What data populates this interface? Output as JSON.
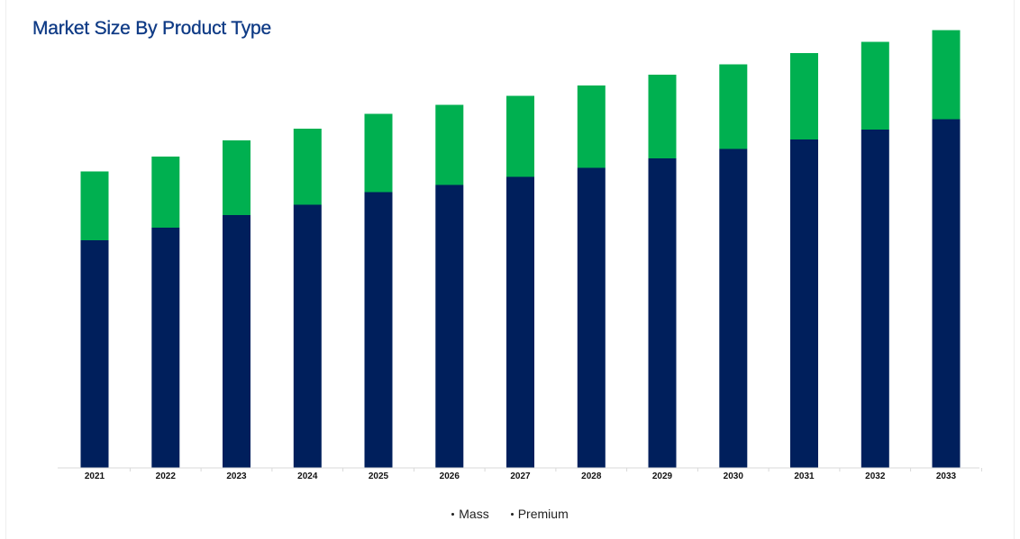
{
  "chart_data": {
    "type": "bar",
    "stacked": true,
    "title": "Market Size By Product Type",
    "xlabel": "",
    "ylabel": "",
    "categories": [
      "2021",
      "2022",
      "2023",
      "2024",
      "2025",
      "2026",
      "2027",
      "2028",
      "2029",
      "2030",
      "2031",
      "2032",
      "2033"
    ],
    "series": [
      {
        "name": "Mass",
        "color": "#001f5c",
        "values": [
          50.6,
          53.4,
          56.2,
          58.5,
          61.3,
          62.9,
          64.7,
          66.7,
          68.8,
          70.9,
          73.0,
          75.2,
          77.5
        ]
      },
      {
        "name": "Premium",
        "color": "#00b050",
        "values": [
          15.3,
          15.8,
          16.6,
          16.9,
          17.4,
          17.8,
          18.0,
          18.3,
          18.6,
          18.8,
          19.2,
          19.5,
          19.8
        ]
      }
    ],
    "ylim": [
      0,
      100
    ],
    "grid": false,
    "legend_position": "bottom"
  }
}
